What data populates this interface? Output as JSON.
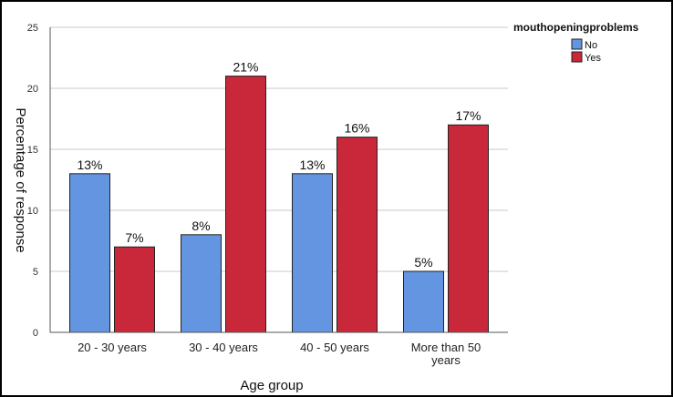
{
  "chart_data": {
    "type": "bar",
    "categories": [
      "20 - 30 years",
      "30 - 40 years",
      "40 - 50 years",
      "More than 50 years"
    ],
    "series": [
      {
        "name": "No",
        "values": [
          13,
          8,
          13,
          5
        ],
        "labels": [
          "13%",
          "8%",
          "13%",
          "5%"
        ],
        "color": "#6495e0"
      },
      {
        "name": "Yes",
        "values": [
          7,
          21,
          16,
          17
        ],
        "labels": [
          "7%",
          "21%",
          "16%",
          "17%"
        ],
        "color": "#c8283a"
      }
    ],
    "xlabel": "Age group",
    "ylabel": "Percentage of response",
    "ylim": [
      0,
      25
    ],
    "yticks": [
      0,
      5,
      10,
      15,
      20,
      25
    ],
    "grid": true,
    "legend": {
      "title": "mouthopeningproblems",
      "position": "top-right"
    }
  }
}
